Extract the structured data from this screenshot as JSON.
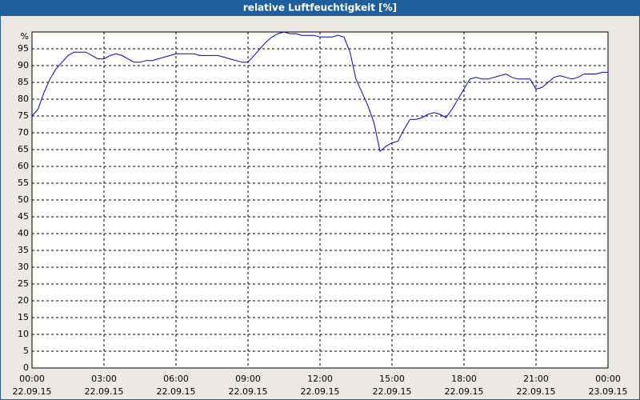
{
  "chart_data": {
    "type": "line",
    "title": "relative Luftfeuchtigkeit [%]",
    "x": [
      0,
      0.25,
      0.5,
      0.75,
      1,
      1.25,
      1.5,
      1.75,
      2,
      2.25,
      2.5,
      2.75,
      3,
      3.25,
      3.5,
      3.75,
      4,
      4.25,
      4.5,
      4.75,
      5,
      5.25,
      5.5,
      5.75,
      6,
      6.25,
      6.5,
      6.75,
      7,
      7.25,
      7.5,
      7.75,
      8,
      8.25,
      8.5,
      8.75,
      9,
      9.25,
      9.5,
      9.75,
      10,
      10.25,
      10.5,
      10.75,
      11,
      11.25,
      11.5,
      11.75,
      12,
      12.25,
      12.5,
      12.75,
      13,
      13.25,
      13.5,
      13.75,
      14,
      14.25,
      14.5,
      14.75,
      15,
      15.25,
      15.5,
      15.75,
      16,
      16.25,
      16.5,
      16.75,
      17,
      17.25,
      17.5,
      17.75,
      18,
      18.25,
      18.5,
      18.75,
      19,
      19.25,
      19.5,
      19.75,
      20,
      20.25,
      20.5,
      20.75,
      21,
      21.25,
      21.5,
      21.75,
      22,
      22.25,
      22.5,
      22.75,
      23,
      23.25,
      23.5,
      23.75,
      24
    ],
    "series": [
      {
        "color": "#0000cc",
        "values": [
          75,
          77,
          82,
          86,
          89,
          91,
          93,
          94,
          94,
          94,
          93,
          92,
          92,
          93,
          93.5,
          93,
          92,
          91,
          91,
          91.5,
          91.5,
          92,
          92.5,
          93,
          93.5,
          93.5,
          93.5,
          93.5,
          93,
          93,
          93,
          93,
          92.5,
          92,
          91.5,
          91,
          91,
          93,
          95,
          97,
          98.5,
          99.5,
          100,
          99.5,
          99.5,
          99,
          99,
          99,
          98.5,
          98.5,
          98.5,
          99,
          98.5,
          94,
          86,
          82,
          78,
          73,
          64.5,
          66,
          67,
          67.5,
          71,
          74,
          74,
          74.5,
          75.5,
          76,
          75.5,
          74.5,
          77,
          80,
          83,
          86,
          86.5,
          86,
          86,
          86.5,
          87,
          87.5,
          86.5,
          86,
          86,
          86,
          83,
          83.5,
          85,
          86.5,
          87,
          86.5,
          86,
          86.5,
          87.5,
          87.5,
          87.5,
          88,
          88
        ]
      }
    ],
    "xlim": [
      0,
      24
    ],
    "xticks": [
      {
        "value": 0,
        "label": "00:00",
        "date": "22.09.15"
      },
      {
        "value": 3,
        "label": "03:00",
        "date": "22.09.15"
      },
      {
        "value": 6,
        "label": "06:00",
        "date": "22.09.15"
      },
      {
        "value": 9,
        "label": "09:00",
        "date": "22.09.15"
      },
      {
        "value": 12,
        "label": "12:00",
        "date": "22.09.15"
      },
      {
        "value": 15,
        "label": "15:00",
        "date": "22.09.15"
      },
      {
        "value": 18,
        "label": "18:00",
        "date": "22.09.15"
      },
      {
        "value": 21,
        "label": "21:00",
        "date": "22.09.15"
      },
      {
        "value": 24,
        "label": "00:00",
        "date": "23.09.15"
      }
    ],
    "ylim": [
      0,
      100
    ],
    "yticks": [
      0,
      5,
      10,
      15,
      20,
      25,
      30,
      35,
      40,
      45,
      50,
      55,
      60,
      65,
      70,
      75,
      80,
      85,
      90,
      95,
      {
        "value": 100,
        "label": "%"
      }
    ],
    "grid": true
  }
}
